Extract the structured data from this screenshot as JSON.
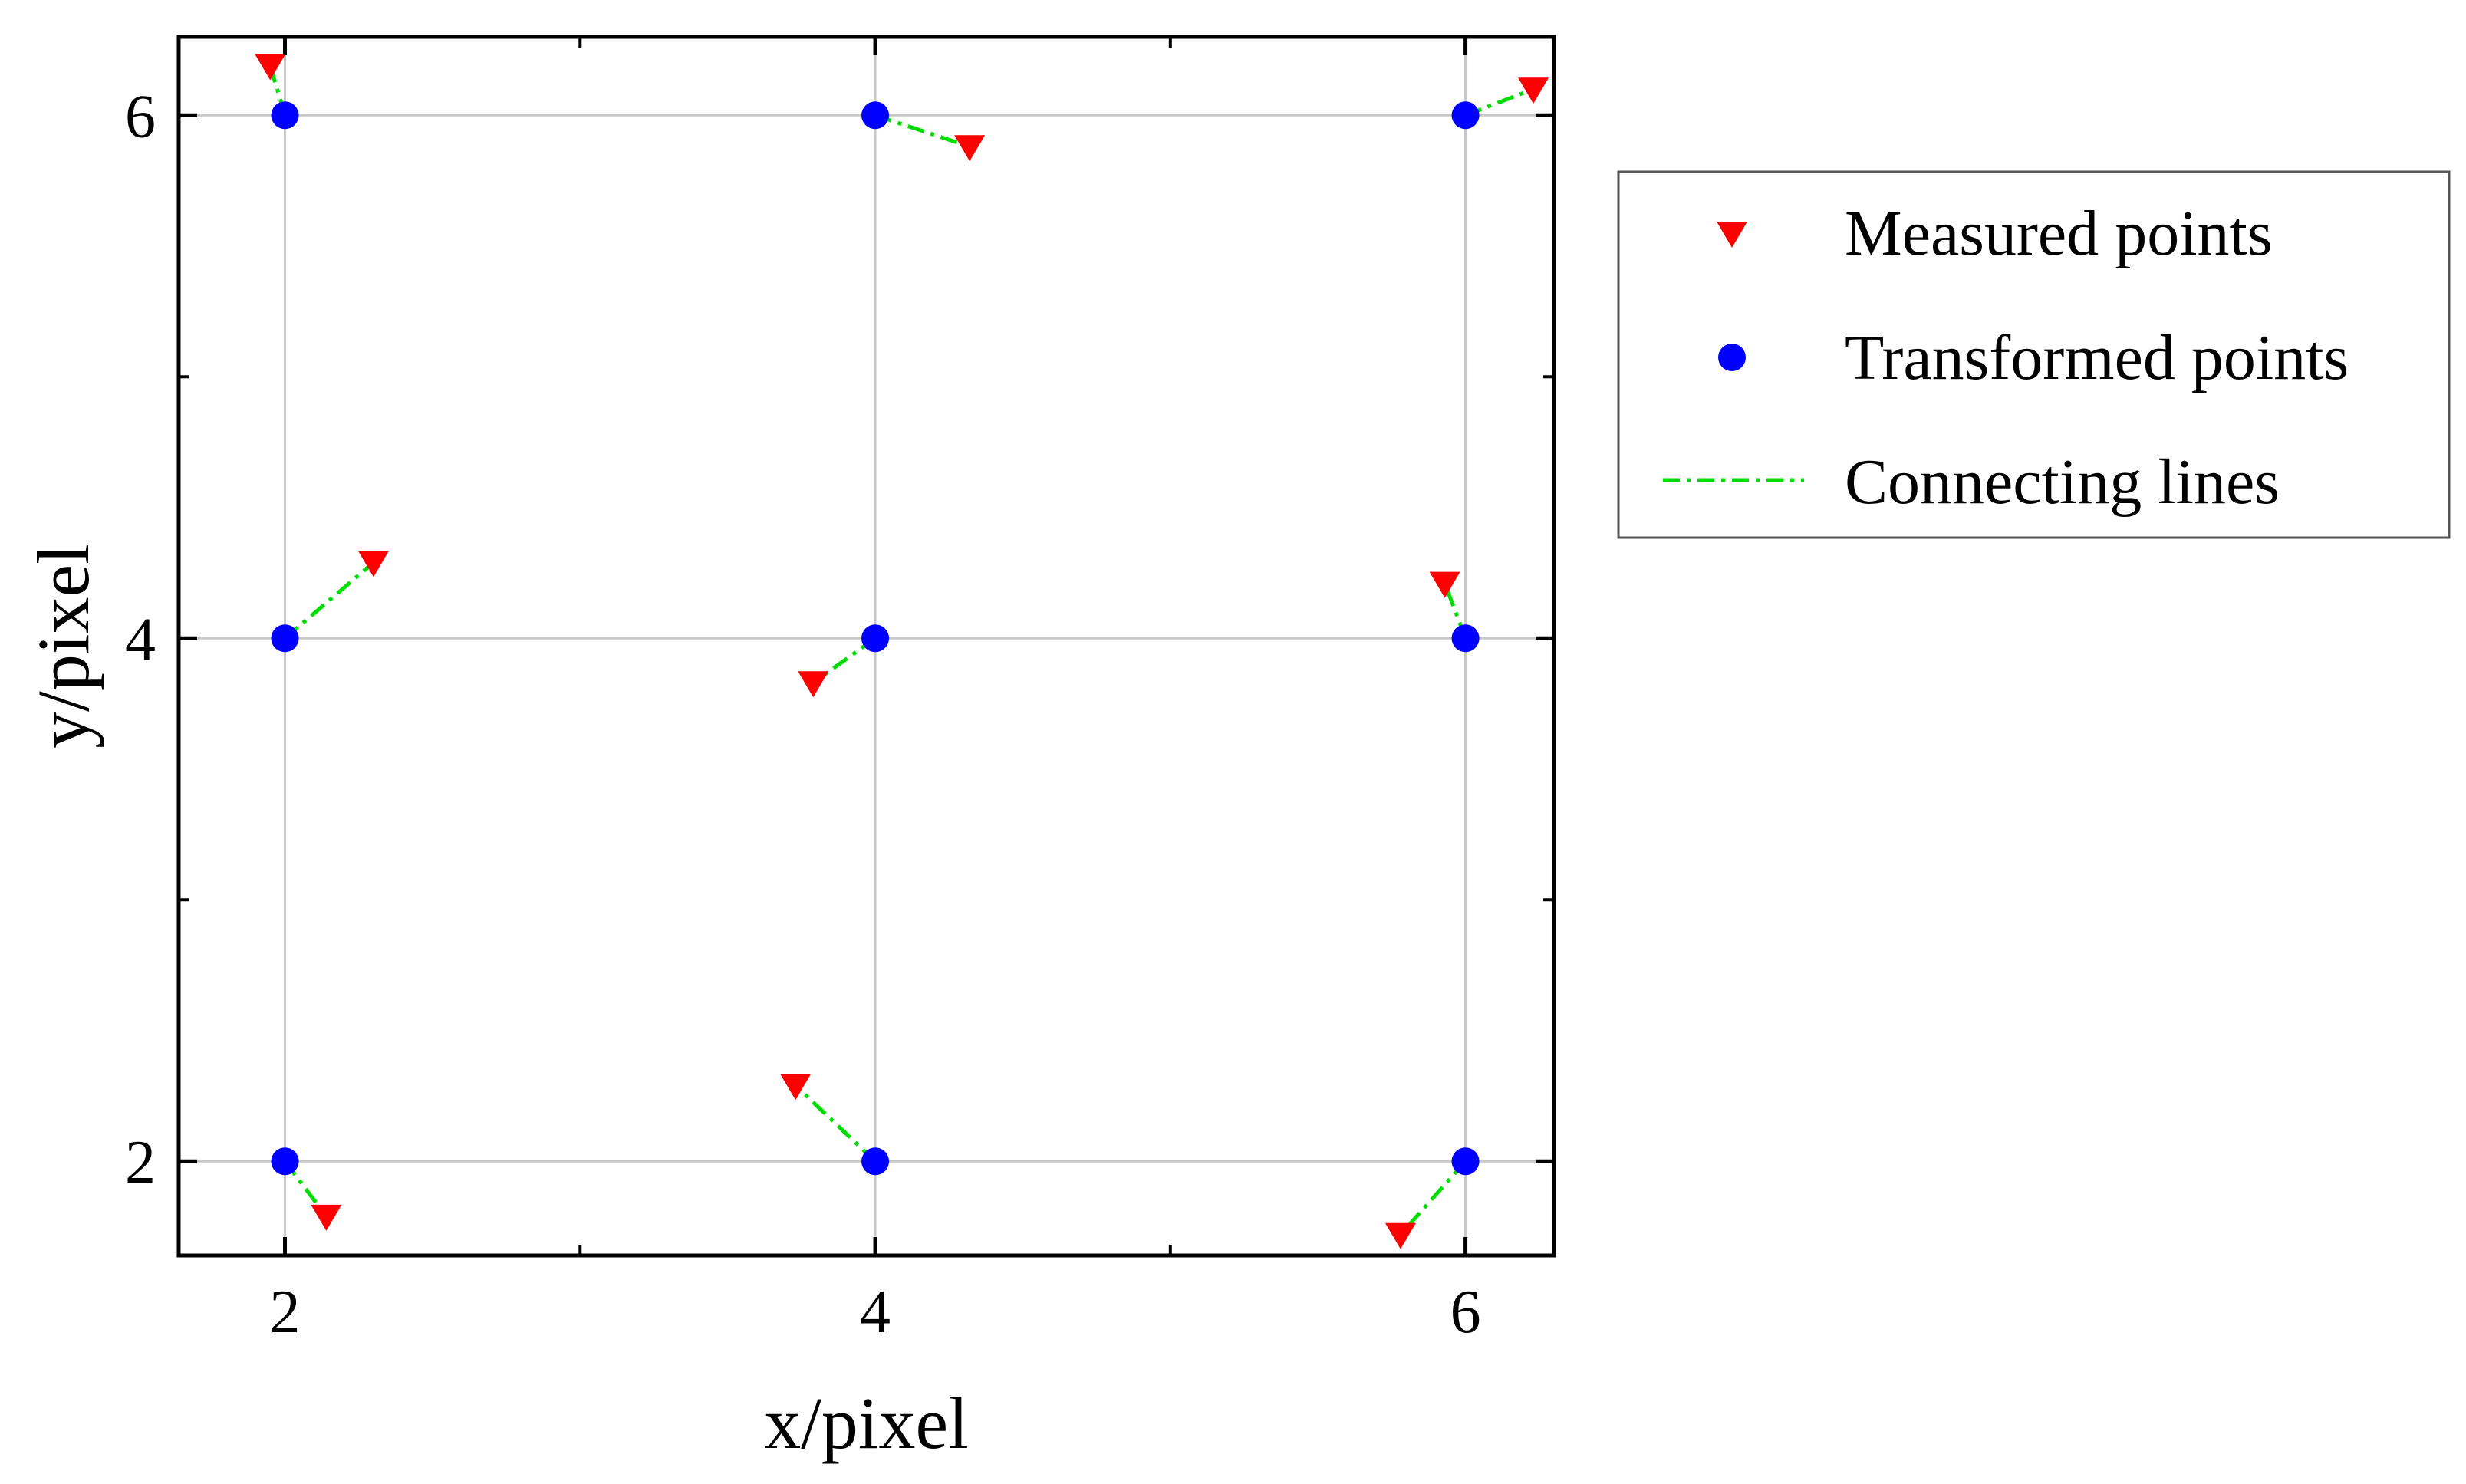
{
  "chart_data": {
    "type": "scatter",
    "title": "",
    "xlabel": "x/pixel",
    "ylabel": "y/pixel",
    "xlim": [
      1.64,
      6.3
    ],
    "ylim": [
      1.64,
      6.3
    ],
    "xticks": [
      2,
      4,
      6
    ],
    "yticks": [
      2,
      4,
      6
    ],
    "xticks_minor": [
      3,
      5
    ],
    "yticks_minor": [
      3,
      5
    ],
    "grid": true,
    "legend_position": "outside-right-top",
    "colors": {
      "measured": "#ff0000",
      "transformed": "#0000ff",
      "connecting": "#00dd00",
      "grid": "#c8c8c8",
      "axes": "#000000"
    },
    "series": [
      {
        "name": "Measured points",
        "marker": "down-triangle",
        "x": [
          1.95,
          4.32,
          6.23,
          2.3,
          3.79,
          5.93,
          2.14,
          3.73,
          5.78
        ],
        "y": [
          6.19,
          5.88,
          6.1,
          4.29,
          3.83,
          4.21,
          1.79,
          2.29,
          1.72
        ]
      },
      {
        "name": "Transformed points",
        "marker": "circle",
        "x": [
          2,
          4,
          6,
          2,
          4,
          6,
          2,
          4,
          6
        ],
        "y": [
          6,
          6,
          6,
          4,
          4,
          4,
          2,
          2,
          2
        ]
      },
      {
        "name": "Connecting lines",
        "marker": "dash-dot-line"
      }
    ]
  }
}
